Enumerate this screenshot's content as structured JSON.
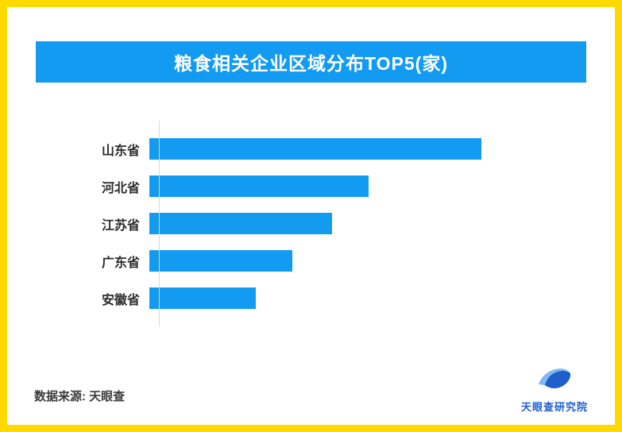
{
  "page": {
    "frame_color": "#FFD900",
    "background": "#FFFFFF"
  },
  "header": {
    "title": "粮食相关企业区域分布TOP5(家)",
    "background": "#129BF1",
    "text_color": "#FFFFFF"
  },
  "chart_data": {
    "type": "bar",
    "orientation": "horizontal",
    "title": "粮食相关企业区域分布TOP5(家)",
    "categories": [
      "山东省",
      "河北省",
      "江苏省",
      "广东省",
      "安徽省"
    ],
    "values": [
      100,
      66,
      55,
      43,
      32
    ],
    "xlim": [
      0,
      100
    ],
    "value_labels_shown": false,
    "grid": false,
    "legend": false,
    "bar_color": "#129BF1",
    "axis_line_color": "#D9D9D9"
  },
  "footer": {
    "source": "数据来源: 天眼查",
    "logo": {
      "text": "天眼查研究院",
      "icon": "tianyancha-logo",
      "color": "#1E5FCC"
    }
  }
}
